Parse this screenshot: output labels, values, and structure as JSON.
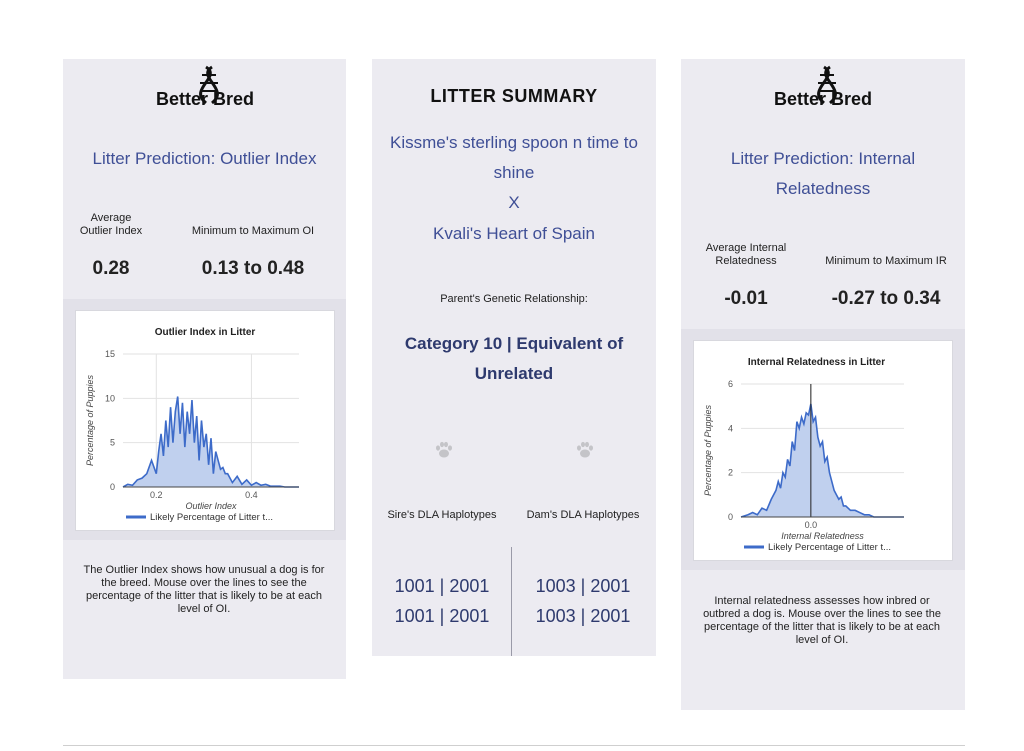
{
  "brand": {
    "logo_text": "Better Bred"
  },
  "left_panel": {
    "title": "Litter Prediction: Outlier Index",
    "avg_label": "Average Outlier Index",
    "avg_value": "0.28",
    "range_label": "Minimum to Maximum OI",
    "range_value": "0.13 to 0.48",
    "description": "The Outlier Index shows how unusual a dog is for the breed. Mouse over the lines to see the percentage of the litter that is likely to be at each level of OI."
  },
  "middle_panel": {
    "title": "LITTER SUMMARY",
    "sire_name": "Kissme's sterling spoon n time to shine",
    "cross": "X",
    "dam_name": "Kvali's Heart of Spain",
    "relationship_label": "Parent's Genetic Relationship:",
    "relationship_value": "Category 10 | Equivalent of Unrelated",
    "sire_label": "Sire's DLA Haplotypes",
    "dam_label": "Dam's DLA Haplotypes",
    "sire_haplotypes": [
      "1001 | 2001",
      "1001 | 2001"
    ],
    "dam_haplotypes": [
      "1003 | 2001",
      "1003 | 2001"
    ],
    "paw_icon": "paw-icon"
  },
  "right_panel": {
    "title": "Litter Prediction: Internal Relatedness",
    "avg_label": "Average Internal Relatedness",
    "avg_value": "-0.01",
    "range_label": "Minimum to Maximum IR",
    "range_value": "-0.27 to 0.34",
    "description": "Internal relatedness assesses how inbred or outbred a dog is. Mouse over the lines to see the percentage of the litter that is likely to be at each level of OI."
  },
  "chart_data": [
    {
      "type": "area",
      "title": "Outlier Index in Litter",
      "xlabel": "Outlier Index",
      "ylabel": "Percentage of Puppies",
      "xlim": [
        0.13,
        0.5
      ],
      "ylim": [
        0,
        15
      ],
      "xticks": [
        "0.2",
        "0.4"
      ],
      "xtick_values": [
        0.2,
        0.4
      ],
      "yticks": [
        "0",
        "5",
        "10",
        "15"
      ],
      "ytick_values": [
        0,
        5,
        10,
        15
      ],
      "legend": "Likely Percentage of Litter t...",
      "legend_position": "bottom",
      "color": "#3d6bc9",
      "fill": "#c0d0ee",
      "series": [
        {
          "x": [
            0.13,
            0.14,
            0.15,
            0.16,
            0.17,
            0.18,
            0.19,
            0.2,
            0.205,
            0.21,
            0.215,
            0.22,
            0.225,
            0.23,
            0.235,
            0.24,
            0.245,
            0.25,
            0.255,
            0.26,
            0.265,
            0.27,
            0.275,
            0.28,
            0.285,
            0.29,
            0.295,
            0.3,
            0.305,
            0.31,
            0.315,
            0.32,
            0.325,
            0.33,
            0.335,
            0.34,
            0.345,
            0.35,
            0.36,
            0.37,
            0.38,
            0.39,
            0.4,
            0.41,
            0.42,
            0.43,
            0.44,
            0.45,
            0.46,
            0.47,
            0.48,
            0.5
          ],
          "values": [
            0,
            0.3,
            0.2,
            0.8,
            1.0,
            1.5,
            3.0,
            1.5,
            4.0,
            6.0,
            3.5,
            7.5,
            4.5,
            9.0,
            5.0,
            8.5,
            10.2,
            6.0,
            9.5,
            4.5,
            8.5,
            6.0,
            9.8,
            5.0,
            8.0,
            3.0,
            7.5,
            4.5,
            6.0,
            2.5,
            5.5,
            1.5,
            4.0,
            3.0,
            2.0,
            2.2,
            1.5,
            1.5,
            0.5,
            1.2,
            0.3,
            0.8,
            0.2,
            0.5,
            0.2,
            0.3,
            0.1,
            0.1,
            0.1,
            0,
            0,
            0
          ]
        }
      ]
    },
    {
      "type": "area",
      "title": "Internal Relatedness in Litter",
      "xlabel": "Internal Relatedness",
      "ylabel": "Percentage of Puppies",
      "xlim": [
        -0.3,
        0.4
      ],
      "ylim": [
        0,
        6
      ],
      "xticks": [
        "0.0"
      ],
      "xtick_values": [
        0.0
      ],
      "yticks": [
        "0",
        "2",
        "4",
        "6"
      ],
      "ytick_values": [
        0,
        2,
        4,
        6
      ],
      "legend": "Likely Percentage of Litter t...",
      "legend_position": "bottom",
      "color": "#3d6bc9",
      "fill": "#c0d0ee",
      "series": [
        {
          "x": [
            -0.3,
            -0.27,
            -0.25,
            -0.23,
            -0.21,
            -0.19,
            -0.17,
            -0.15,
            -0.14,
            -0.13,
            -0.12,
            -0.11,
            -0.1,
            -0.09,
            -0.08,
            -0.07,
            -0.06,
            -0.05,
            -0.04,
            -0.03,
            -0.02,
            -0.01,
            0.0,
            0.01,
            0.02,
            0.03,
            0.04,
            0.05,
            0.06,
            0.07,
            0.08,
            0.09,
            0.1,
            0.11,
            0.12,
            0.13,
            0.14,
            0.15,
            0.17,
            0.19,
            0.21,
            0.23,
            0.25,
            0.27,
            0.3,
            0.34,
            0.4
          ],
          "values": [
            0,
            0.1,
            0.2,
            0.1,
            0.4,
            0.3,
            0.8,
            1.2,
            1.6,
            1.3,
            2.0,
            1.8,
            2.6,
            2.3,
            3.4,
            3.0,
            4.3,
            4.0,
            4.5,
            4.2,
            4.7,
            4.6,
            5.1,
            4.3,
            4.5,
            3.6,
            3.2,
            3.4,
            2.5,
            2.7,
            2.0,
            1.6,
            1.2,
            1.0,
            0.8,
            0.9,
            0.5,
            0.5,
            0.3,
            0.3,
            0.2,
            0.1,
            0.1,
            0,
            0,
            0,
            0
          ]
        }
      ]
    }
  ]
}
